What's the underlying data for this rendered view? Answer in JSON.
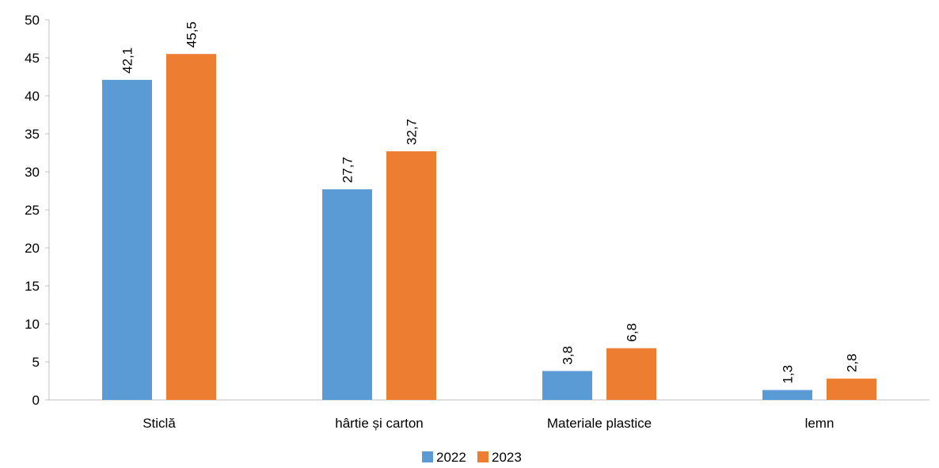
{
  "chart_data": {
    "type": "bar",
    "categories": [
      "Sticlă",
      "hârtie și carton",
      "Materiale plastice",
      "lemn"
    ],
    "series": [
      {
        "name": "2022",
        "values": [
          42.1,
          27.7,
          3.8,
          1.3
        ],
        "labels": [
          "42,1",
          "27,7",
          "3,8",
          "1,3"
        ],
        "color": "#5b9bd5"
      },
      {
        "name": "2023",
        "values": [
          45.5,
          32.7,
          6.8,
          2.8
        ],
        "labels": [
          "45,5",
          "32,7",
          "6,8",
          "2,8"
        ],
        "color": "#ed7d31"
      }
    ],
    "ylim": [
      0,
      50
    ],
    "yticks": [
      0,
      5,
      10,
      15,
      20,
      25,
      30,
      35,
      40,
      45,
      50
    ],
    "grid": false,
    "legend_position": "bottom"
  }
}
